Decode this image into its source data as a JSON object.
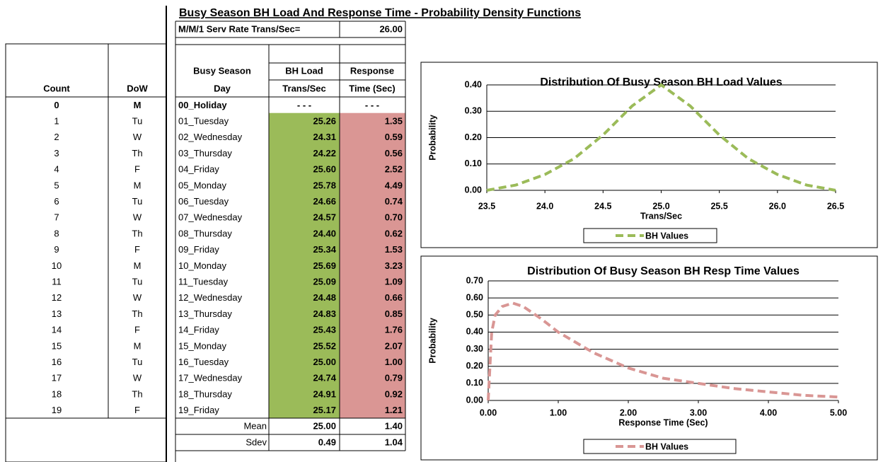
{
  "title": "Busy Season BH Load And Response Time - Probability Density Functions",
  "service_rate": {
    "label": "M/M/1 Serv Rate Trans/Sec=",
    "value": "26.00"
  },
  "table": {
    "headers": {
      "count": "Count",
      "dow": "DoW",
      "day": [
        "Busy Season",
        "Day"
      ],
      "load": [
        "BH Load",
        "Trans/Sec"
      ],
      "response": [
        "Response",
        "Time (Sec)"
      ]
    },
    "rows": [
      [
        "0",
        "M",
        "00_Holiday",
        "- - -",
        "- - -"
      ],
      [
        "1",
        "Tu",
        "01_Tuesday",
        "25.26",
        "1.35"
      ],
      [
        "2",
        "W",
        "02_Wednesday",
        "24.31",
        "0.59"
      ],
      [
        "3",
        "Th",
        "03_Thursday",
        "24.22",
        "0.56"
      ],
      [
        "4",
        "F",
        "04_Friday",
        "25.60",
        "2.52"
      ],
      [
        "5",
        "M",
        "05_Monday",
        "25.78",
        "4.49"
      ],
      [
        "6",
        "Tu",
        "06_Tuesday",
        "24.66",
        "0.74"
      ],
      [
        "7",
        "W",
        "07_Wednesday",
        "24.57",
        "0.70"
      ],
      [
        "8",
        "Th",
        "08_Thursday",
        "24.40",
        "0.62"
      ],
      [
        "9",
        "F",
        "09_Friday",
        "25.34",
        "1.53"
      ],
      [
        "10",
        "M",
        "10_Monday",
        "25.69",
        "3.23"
      ],
      [
        "11",
        "Tu",
        "11_Tuesday",
        "25.09",
        "1.09"
      ],
      [
        "12",
        "W",
        "12_Wednesday",
        "24.48",
        "0.66"
      ],
      [
        "13",
        "Th",
        "13_Thursday",
        "24.83",
        "0.85"
      ],
      [
        "14",
        "F",
        "14_Friday",
        "25.43",
        "1.76"
      ],
      [
        "15",
        "M",
        "15_Monday",
        "25.52",
        "2.07"
      ],
      [
        "16",
        "Tu",
        "16_Tuesday",
        "25.00",
        "1.00"
      ],
      [
        "17",
        "W",
        "17_Wednesday",
        "24.74",
        "0.79"
      ],
      [
        "18",
        "Th",
        "18_Thursday",
        "24.91",
        "0.92"
      ],
      [
        "19",
        "F",
        "19_Friday",
        "25.17",
        "1.21"
      ]
    ],
    "summary": [
      [
        "Mean",
        "25.00",
        "1.40"
      ],
      [
        "Sdev",
        "0.49",
        "1.04"
      ]
    ]
  },
  "chart_data": [
    {
      "type": "line",
      "title": "Distribution Of Busy Season BH Load Values",
      "x_label": "Trans/Sec",
      "y_label": "Probability",
      "x": [
        23.5,
        23.75,
        24.0,
        24.25,
        24.5,
        24.75,
        25.0,
        25.25,
        25.5,
        25.75,
        26.0,
        26.25,
        26.5
      ],
      "series": [
        {
          "name": "BH Values",
          "color": "#9bbb59",
          "values": [
            0.0,
            0.02,
            0.06,
            0.12,
            0.21,
            0.32,
            0.4,
            0.32,
            0.21,
            0.12,
            0.06,
            0.02,
            0.0
          ]
        }
      ],
      "xlim": [
        23.5,
        26.5
      ],
      "xticks": [
        23.5,
        {
          "value": 24,
          "label": "24.0"
        },
        24.5,
        {
          "value": 25,
          "label": "25.0"
        },
        25.5,
        {
          "value": 26,
          "label": "26.0"
        },
        26.5
      ],
      "ylim": [
        0,
        0.4
      ],
      "yticks": [
        {
          "value": 0,
          "label": "0.00"
        },
        {
          "value": 0.1,
          "label": "0.10"
        },
        {
          "value": 0.2,
          "label": "0.20"
        },
        {
          "value": 0.3,
          "label": "0.30"
        },
        {
          "value": 0.4,
          "label": "0.40"
        }
      ],
      "grid": true,
      "legend": "bottom"
    },
    {
      "type": "line",
      "title": "Distribution Of Busy Season BH Resp Time Values",
      "x_label": "Response  Time (Sec)",
      "y_label": "Probability",
      "x": [
        0,
        0.05,
        0.1,
        0.2,
        0.35,
        0.5,
        0.75,
        1.0,
        1.5,
        2.0,
        2.5,
        3.0,
        3.5,
        4.0,
        4.5,
        5.0
      ],
      "series": [
        {
          "name": "BH Values",
          "color": "#d99694",
          "values": [
            0.0,
            0.4,
            0.5,
            0.55,
            0.57,
            0.55,
            0.48,
            0.4,
            0.28,
            0.19,
            0.13,
            0.1,
            0.07,
            0.05,
            0.03,
            0.02
          ]
        }
      ],
      "xlim": [
        0,
        5
      ],
      "xticks": [
        {
          "value": 0,
          "label": "0.00"
        },
        {
          "value": 1,
          "label": "1.00"
        },
        {
          "value": 2,
          "label": "2.00"
        },
        {
          "value": 3,
          "label": "3.00"
        },
        {
          "value": 4,
          "label": "4.00"
        },
        {
          "value": 5,
          "label": "5.00"
        }
      ],
      "ylim": [
        0,
        0.7
      ],
      "yticks": [
        {
          "value": 0,
          "label": "0.00"
        },
        {
          "value": 0.1,
          "label": "0.10"
        },
        {
          "value": 0.2,
          "label": "0.20"
        },
        {
          "value": 0.3,
          "label": "0.30"
        },
        {
          "value": 0.4,
          "label": "0.40"
        },
        {
          "value": 0.5,
          "label": "0.50"
        },
        {
          "value": 0.6,
          "label": "0.60"
        },
        {
          "value": 0.7,
          "label": "0.70"
        }
      ],
      "grid": true,
      "legend": "bottom"
    }
  ]
}
